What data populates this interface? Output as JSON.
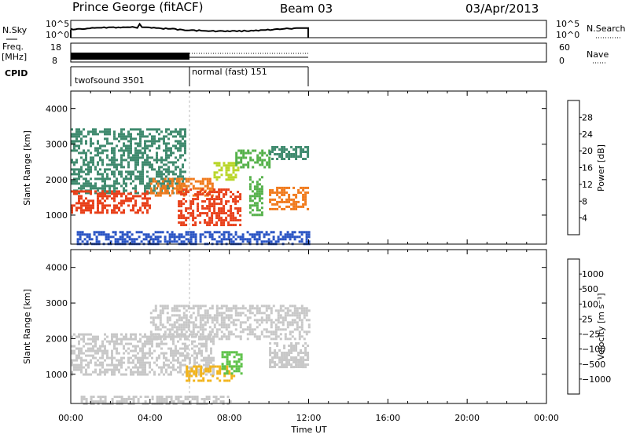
{
  "header": {
    "station": "Prince George (fitACF)",
    "beam": "Beam 03",
    "date": "03/Apr/2013"
  },
  "strip": {
    "nsky_label": "N.Sky",
    "nsky_tick_top": "10^5",
    "nsky_tick_bottom": "10^0",
    "nsearch_label": "N.Search",
    "nsearch_tick_top": "10^5",
    "nsearch_tick_bottom": "10^0",
    "freq_label": "Freq.",
    "freq_unit": "[MHz]",
    "freq_tick_top": "18",
    "freq_tick_bottom": "8",
    "nave_label": "Nave",
    "nave_tick_top": "60",
    "nave_tick_bottom": "0",
    "cpid_label": "CPID",
    "cpid_segments": [
      {
        "name": "twofsound 3501",
        "start": "00:00",
        "end": "06:00"
      },
      {
        "name": "normal (fast) 151",
        "start": "06:00",
        "end": "12:00"
      }
    ]
  },
  "chart_data": [
    {
      "type": "heatmap",
      "title": "",
      "xlabel": "Time UT",
      "ylabel": "Slant Range [km]",
      "x_ticks": [
        "00:00",
        "04:00",
        "08:00",
        "12:00",
        "16:00",
        "20:00",
        "00:00"
      ],
      "xlim_hours": [
        0,
        24
      ],
      "y_ticks": [
        1000,
        2000,
        3000,
        4000
      ],
      "ylim": [
        180,
        4500
      ],
      "colorbar": {
        "label": "Power [dB]",
        "ticks": [
          4,
          8,
          12,
          16,
          20,
          24,
          28
        ],
        "range": [
          0,
          32
        ],
        "colors": [
          "#1a1aff",
          "#2a54c4",
          "#3f8a6e",
          "#55b14a",
          "#b9d62a",
          "#f2a21c",
          "#f07a1c",
          "#e8401a",
          "#d4141a"
        ]
      },
      "regions": [
        {
          "t0": 0.0,
          "t1": 5.8,
          "r0": 1600,
          "r1": 3450,
          "value": 8
        },
        {
          "t0": 0.0,
          "t1": 4.0,
          "r0": 1050,
          "r1": 1700,
          "value": 28
        },
        {
          "t0": 4.0,
          "t1": 7.2,
          "r0": 1550,
          "r1": 2050,
          "value": 24
        },
        {
          "t0": 7.2,
          "t1": 8.5,
          "r0": 2000,
          "r1": 2500,
          "value": 16
        },
        {
          "t0": 8.3,
          "t1": 10.0,
          "r0": 2350,
          "r1": 2850,
          "value": 12
        },
        {
          "t0": 10.0,
          "t1": 12.0,
          "r0": 2600,
          "r1": 2950,
          "value": 8
        },
        {
          "t0": 5.4,
          "t1": 8.6,
          "r0": 750,
          "r1": 1750,
          "value": 28
        },
        {
          "t0": 9.0,
          "t1": 9.6,
          "r0": 1000,
          "r1": 2100,
          "value": 12
        },
        {
          "t0": 10.0,
          "t1": 12.0,
          "r0": 1150,
          "r1": 1800,
          "value": 24
        },
        {
          "t0": 0.3,
          "t1": 12.0,
          "r0": 200,
          "r1": 550,
          "value": 4
        }
      ]
    },
    {
      "type": "heatmap",
      "title": "",
      "xlabel": "Time UT",
      "ylabel": "Slant Range [km]",
      "x_ticks": [
        "00:00",
        "04:00",
        "08:00",
        "12:00",
        "16:00",
        "20:00",
        "00:00"
      ],
      "xlim_hours": [
        0,
        24
      ],
      "y_ticks": [
        1000,
        2000,
        3000,
        4000
      ],
      "ylim": [
        180,
        4500
      ],
      "colorbar": {
        "label": "Velocity [m s⁻¹]",
        "ticks": [
          "1000",
          "500",
          "100",
          "25",
          "−25",
          "−100",
          "−500",
          "−1000"
        ],
        "range": [
          -1500,
          1500
        ],
        "colors": [
          "#2c2cb4",
          "#2e5fbf",
          "#3c8a3c",
          "#5ec24a",
          "#c8c8c8",
          "#f2b41c",
          "#f07a1c",
          "#e84018",
          "#d41818"
        ]
      },
      "regions": [
        {
          "t0": 0.0,
          "t1": 7.2,
          "r0": 1000,
          "r1": 2150,
          "value": 0
        },
        {
          "t0": 4.0,
          "t1": 12.0,
          "r0": 2000,
          "r1": 2950,
          "value": 0
        },
        {
          "t0": 5.8,
          "t1": 8.2,
          "r0": 800,
          "r1": 1250,
          "value": 300
        },
        {
          "t0": 7.6,
          "t1": 8.6,
          "r0": 1050,
          "r1": 1650,
          "value": -400
        },
        {
          "t0": 10.0,
          "t1": 12.0,
          "r0": 1200,
          "r1": 1900,
          "value": -150
        },
        {
          "t0": 10.0,
          "t1": 12.0,
          "r0": 1200,
          "r1": 1500,
          "value": 150
        },
        {
          "t0": 0.5,
          "t1": 8.0,
          "r0": 200,
          "r1": 400,
          "value": -80
        }
      ]
    }
  ]
}
